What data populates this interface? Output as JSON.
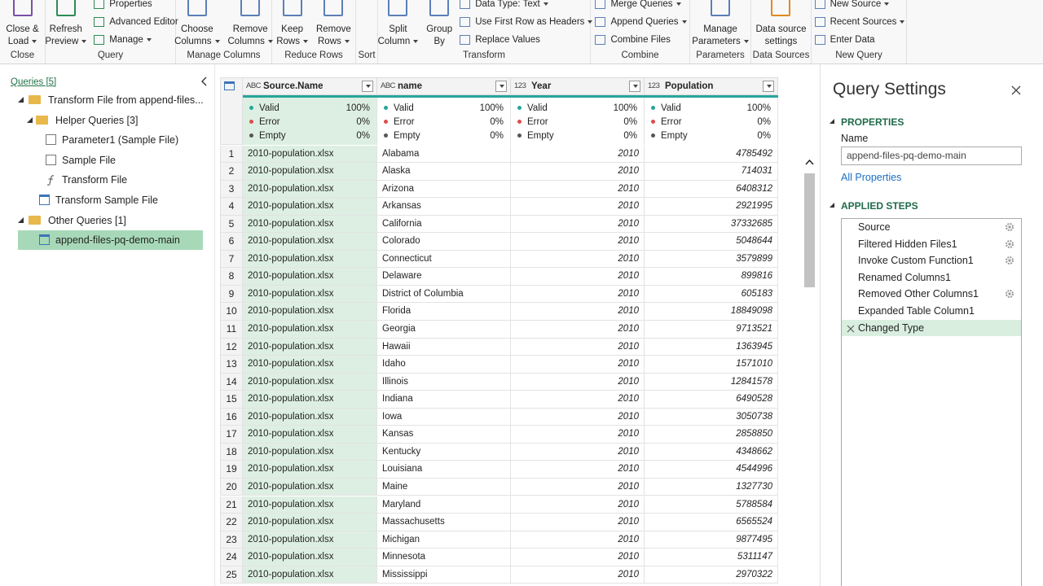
{
  "ribbon": {
    "groups": [
      {
        "label": "Close",
        "large": [
          [
            "Close &",
            "Load"
          ]
        ],
        "small": []
      },
      {
        "label": "Query",
        "large": [
          [
            "Refresh",
            "Preview"
          ]
        ],
        "small": [
          "Properties",
          "Advanced Editor",
          "Manage"
        ]
      },
      {
        "label": "Manage Columns",
        "large": [
          [
            "Choose",
            "Columns"
          ],
          [
            "Remove",
            "Columns"
          ]
        ],
        "small": []
      },
      {
        "label": "Reduce Rows",
        "large": [
          [
            "Keep",
            "Rows"
          ],
          [
            "Remove",
            "Rows"
          ]
        ],
        "small": []
      },
      {
        "label": "Sort",
        "large": [],
        "small": []
      },
      {
        "label": "Transform",
        "large": [
          [
            "Split",
            "Column"
          ],
          [
            "Group",
            "By"
          ]
        ],
        "small": [
          "Data Type: Text",
          "Use First Row as Headers",
          "Replace Values"
        ]
      },
      {
        "label": "Combine",
        "large": [],
        "small": [
          "Merge Queries",
          "Append Queries",
          "Combine Files"
        ]
      },
      {
        "label": "Parameters",
        "large": [
          [
            "Manage",
            "Parameters"
          ]
        ],
        "small": []
      },
      {
        "label": "Data Sources",
        "large": [
          [
            "Data source",
            "settings"
          ]
        ],
        "small": []
      },
      {
        "label": "New Query",
        "large": [],
        "small": [
          "New Source",
          "Recent Sources",
          "Enter Data"
        ]
      }
    ]
  },
  "queries": {
    "title": "Queries [5]",
    "items": [
      "Transform File from append-files...",
      "Helper Queries [3]",
      "Parameter1 (Sample File)",
      "Sample File",
      "Transform File",
      "Transform Sample File",
      "Other Queries [1]",
      "append-files-pq-demo-main"
    ]
  },
  "table": {
    "quality_labels": [
      "Valid",
      "Error",
      "Empty"
    ],
    "columns": [
      {
        "type": "ABC",
        "name": "Source.Name",
        "quality": [
          "100%",
          "0%",
          "0%"
        ]
      },
      {
        "type": "ABC",
        "name": "name",
        "quality": [
          "100%",
          "0%",
          "0%"
        ]
      },
      {
        "type": "123",
        "name": "Year",
        "quality": [
          "100%",
          "0%",
          "0%"
        ]
      },
      {
        "type": "123",
        "name": "Population",
        "quality": [
          "100%",
          "0%",
          "0%"
        ]
      }
    ],
    "rows": [
      [
        1,
        "2010-population.xlsx",
        "Alabama",
        2010,
        4785492
      ],
      [
        2,
        "2010-population.xlsx",
        "Alaska",
        2010,
        714031
      ],
      [
        3,
        "2010-population.xlsx",
        "Arizona",
        2010,
        6408312
      ],
      [
        4,
        "2010-population.xlsx",
        "Arkansas",
        2010,
        2921995
      ],
      [
        5,
        "2010-population.xlsx",
        "California",
        2010,
        37332685
      ],
      [
        6,
        "2010-population.xlsx",
        "Colorado",
        2010,
        5048644
      ],
      [
        7,
        "2010-population.xlsx",
        "Connecticut",
        2010,
        3579899
      ],
      [
        8,
        "2010-population.xlsx",
        "Delaware",
        2010,
        899816
      ],
      [
        9,
        "2010-population.xlsx",
        "District of Columbia",
        2010,
        605183
      ],
      [
        10,
        "2010-population.xlsx",
        "Florida",
        2010,
        18849098
      ],
      [
        11,
        "2010-population.xlsx",
        "Georgia",
        2010,
        9713521
      ],
      [
        12,
        "2010-population.xlsx",
        "Hawaii",
        2010,
        1363945
      ],
      [
        13,
        "2010-population.xlsx",
        "Idaho",
        2010,
        1571010
      ],
      [
        14,
        "2010-population.xlsx",
        "Illinois",
        2010,
        12841578
      ],
      [
        15,
        "2010-population.xlsx",
        "Indiana",
        2010,
        6490528
      ],
      [
        16,
        "2010-population.xlsx",
        "Iowa",
        2010,
        3050738
      ],
      [
        17,
        "2010-population.xlsx",
        "Kansas",
        2010,
        2858850
      ],
      [
        18,
        "2010-population.xlsx",
        "Kentucky",
        2010,
        4348662
      ],
      [
        19,
        "2010-population.xlsx",
        "Louisiana",
        2010,
        4544996
      ],
      [
        20,
        "2010-population.xlsx",
        "Maine",
        2010,
        1327730
      ],
      [
        21,
        "2010-population.xlsx",
        "Maryland",
        2010,
        5788584
      ],
      [
        22,
        "2010-population.xlsx",
        "Massachusetts",
        2010,
        6565524
      ],
      [
        23,
        "2010-population.xlsx",
        "Michigan",
        2010,
        9877495
      ],
      [
        24,
        "2010-population.xlsx",
        "Minnesota",
        2010,
        5311147
      ],
      [
        25,
        "2010-population.xlsx",
        "Mississippi",
        2010,
        2970322
      ]
    ]
  },
  "settings": {
    "title": "Query Settings",
    "properties_heading": "PROPERTIES",
    "name_label": "Name",
    "name_value": "append-files-pq-demo-main",
    "all_properties": "All Properties",
    "steps_heading": "APPLIED STEPS",
    "steps": [
      "Source",
      "Filtered Hidden Files1",
      "Invoke Custom Function1",
      "Renamed Columns1",
      "Removed Other Columns1",
      "Expanded Table Column1",
      "Changed Type"
    ]
  }
}
